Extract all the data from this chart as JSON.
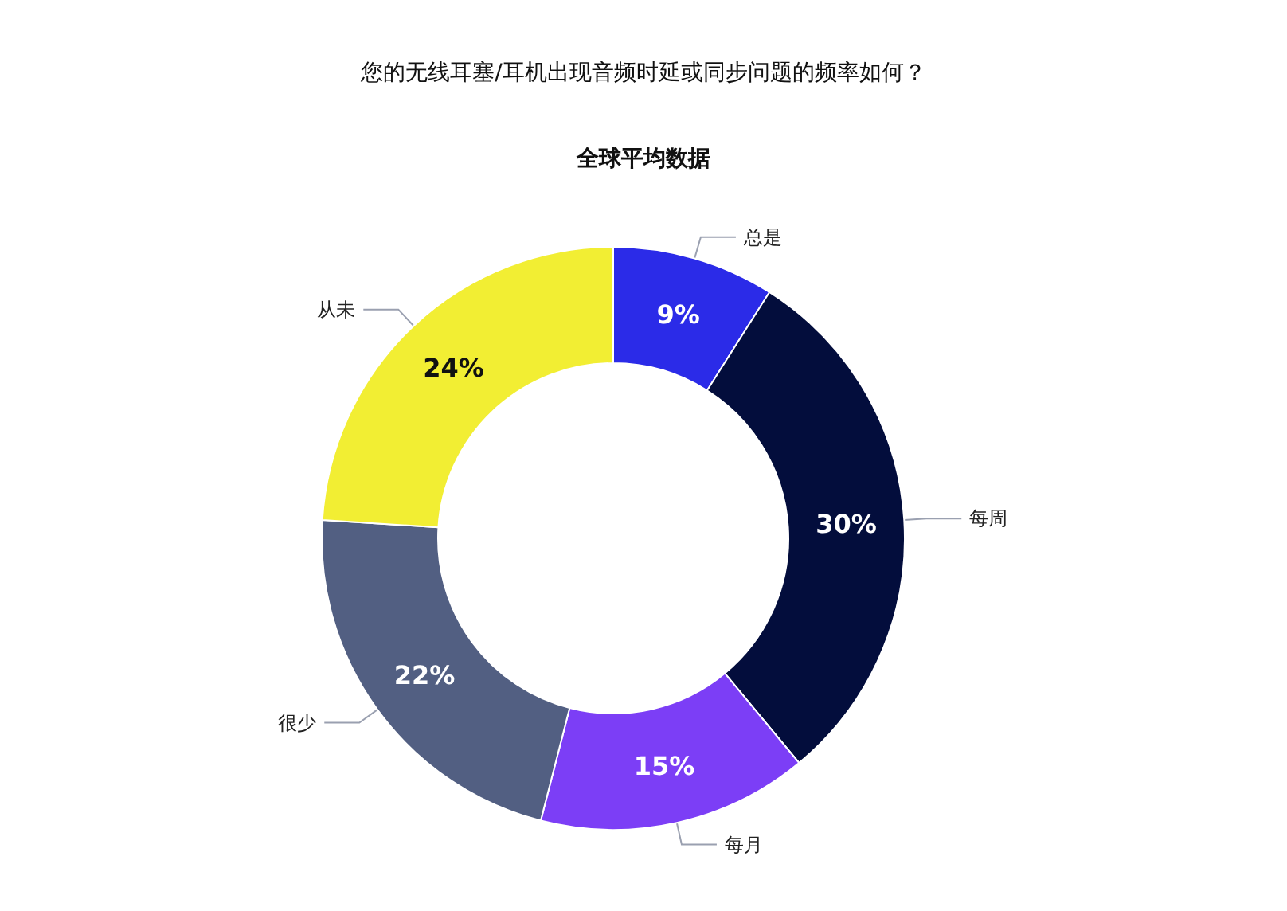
{
  "chart_data": {
    "type": "donut",
    "title": "您的无线耳塞/耳机出现音频时延或同步问题的频率如何？",
    "subtitle": "全球平均数据",
    "categories": [
      "总是",
      "每周",
      "每月",
      "很少",
      "从未"
    ],
    "values": [
      9,
      30,
      15,
      22,
      24
    ],
    "value_labels": [
      "9%",
      "30%",
      "15%",
      "22%",
      "24%"
    ],
    "colors": [
      "#2b2be8",
      "#030d3c",
      "#7c3ef6",
      "#525f82",
      "#f2ee33"
    ],
    "legend": false
  }
}
